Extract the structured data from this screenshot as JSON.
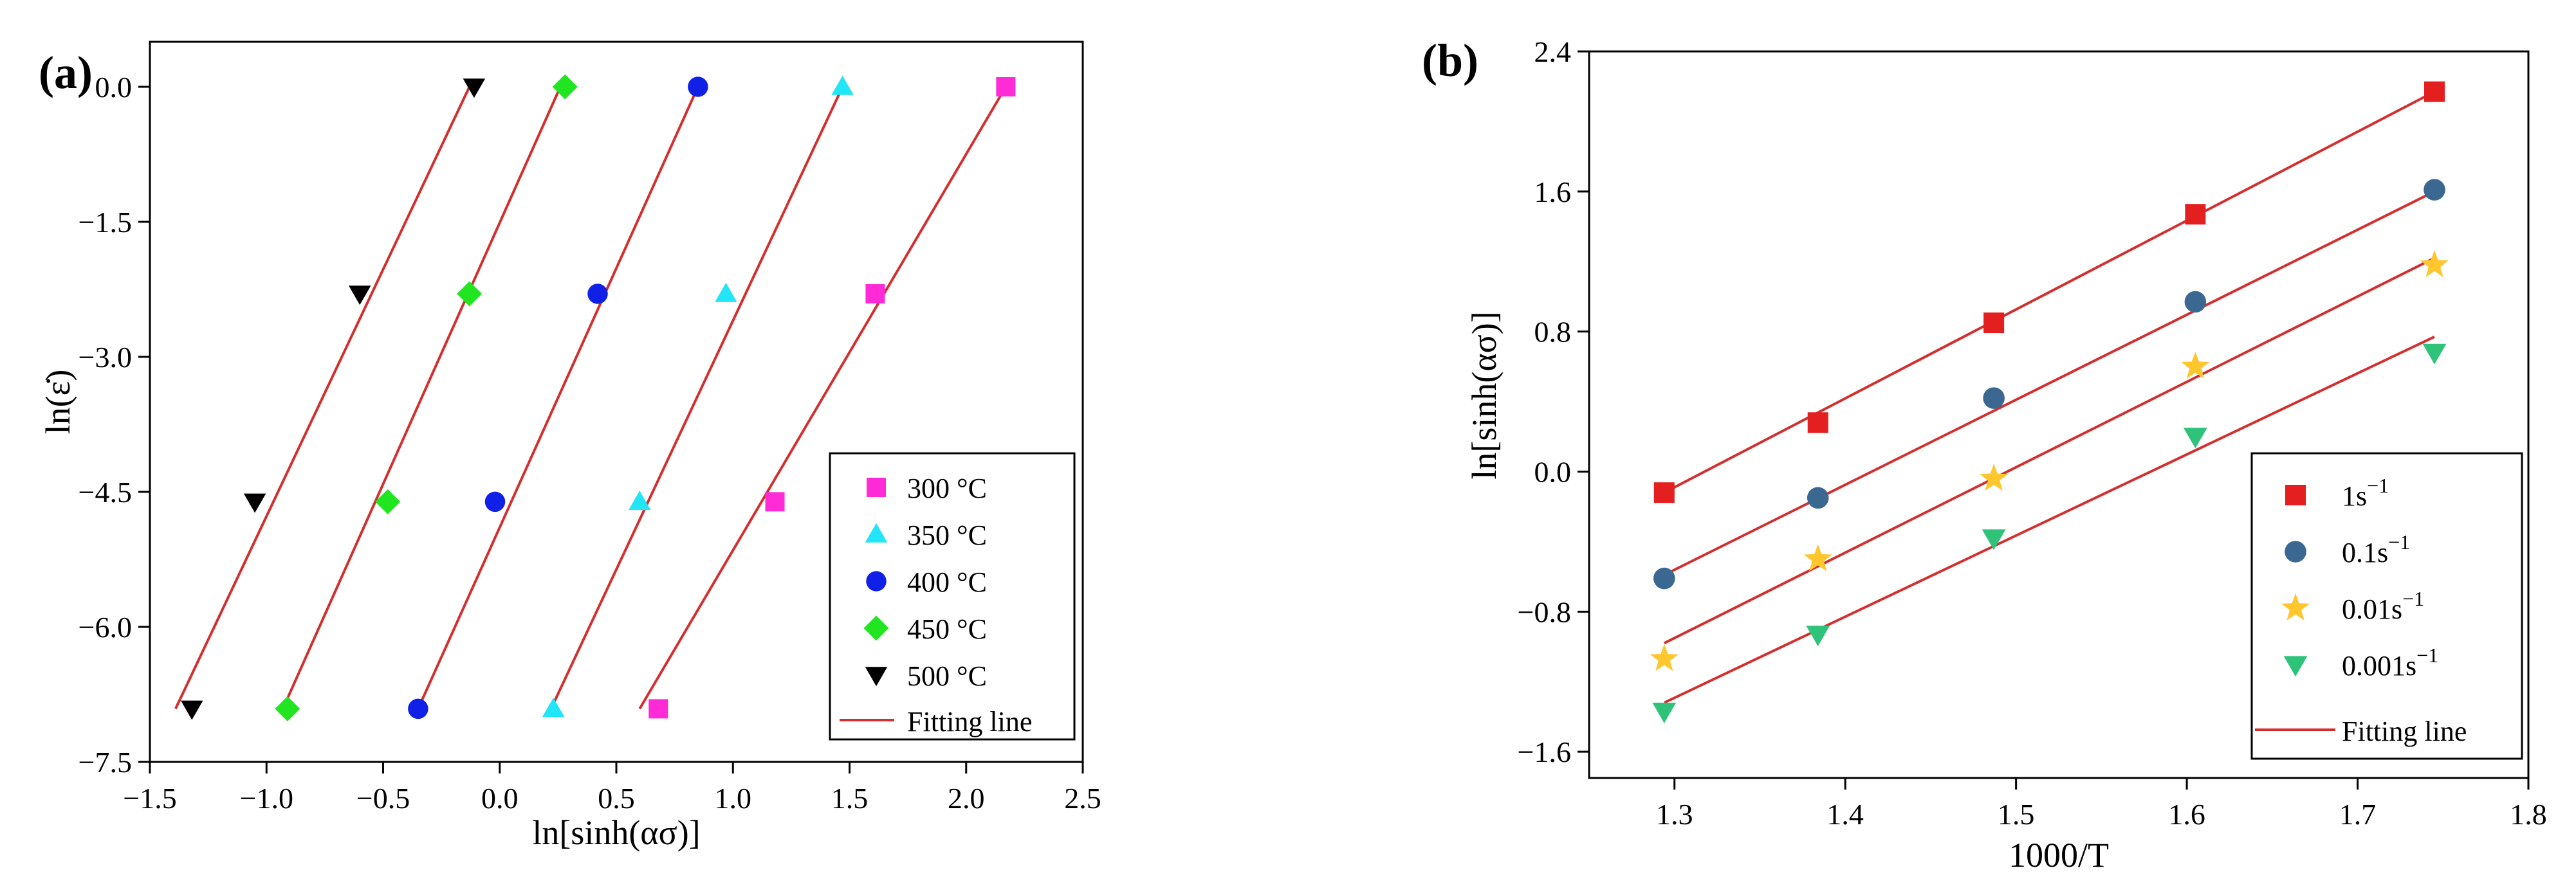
{
  "colors": {
    "fit": "#d32f2f",
    "magenta": "#ff2bd6",
    "cyan": "#22e5f7",
    "blue": "#1020e6",
    "green": "#22e522",
    "black": "#000000",
    "red": "#e31f1f",
    "steel": "#3a6891",
    "gold": "#ffc62e",
    "teal": "#2fc37a"
  },
  "chart_data": [
    {
      "panel_label": "(a)",
      "type": "scatter",
      "xlabel": "ln[sinh(ασ)]",
      "ylabel": "ln(ε̇)",
      "xlim": [
        -1.5,
        2.5
      ],
      "ylim": [
        -7.5,
        0.5
      ],
      "xticks": [
        -1.5,
        -1.0,
        -0.5,
        0.0,
        0.5,
        1.0,
        1.5,
        2.0,
        2.5
      ],
      "xtick_labels": [
        "−1.5",
        "−1.0",
        "−0.5",
        "0.0",
        "0.5",
        "1.0",
        "1.5",
        "2.0",
        "2.5"
      ],
      "yticks": [
        0.0,
        -1.5,
        -3.0,
        -4.5,
        -6.0,
        -7.5
      ],
      "ytick_labels": [
        "0.0",
        "−1.5",
        "−3.0",
        "−4.5",
        "−6.0",
        "−7.5"
      ],
      "legend_position": "bottom-right",
      "fit_label": "Fitting line",
      "series": [
        {
          "name": "300 °C",
          "marker": "square",
          "color": "#ff2bd6",
          "x": [
            0.68,
            1.18,
            1.61,
            2.17
          ],
          "y": [
            -6.91,
            -4.61,
            -2.3,
            0.0
          ],
          "fit": {
            "x": [
              0.6,
              2.17
            ],
            "y": [
              -6.91,
              0.0
            ]
          }
        },
        {
          "name": "350 °C",
          "marker": "triangle-up",
          "color": "#22e5f7",
          "x": [
            0.23,
            0.6,
            0.97,
            1.47
          ],
          "y": [
            -6.91,
            -4.61,
            -2.3,
            0.0
          ],
          "fit": {
            "x": [
              0.22,
              1.47
            ],
            "y": [
              -6.91,
              0.0
            ]
          }
        },
        {
          "name": "400 °C",
          "marker": "circle",
          "color": "#1020e6",
          "x": [
            -0.35,
            -0.02,
            0.42,
            0.85
          ],
          "y": [
            -6.91,
            -4.61,
            -2.3,
            0.0
          ],
          "fit": {
            "x": [
              -0.35,
              0.85
            ],
            "y": [
              -6.91,
              0.0
            ]
          }
        },
        {
          "name": "450 °C",
          "marker": "diamond",
          "color": "#22e522",
          "x": [
            -0.91,
            -0.48,
            -0.13,
            0.28
          ],
          "y": [
            -6.91,
            -4.61,
            -2.3,
            0.0
          ],
          "fit": {
            "x": [
              -0.93,
              0.26
            ],
            "y": [
              -6.91,
              0.0
            ]
          }
        },
        {
          "name": "500 °C",
          "marker": "triangle-down",
          "color": "#000000",
          "x": [
            -1.32,
            -1.05,
            -0.6,
            -0.11
          ],
          "y": [
            -6.91,
            -4.61,
            -2.3,
            0.0
          ],
          "fit": {
            "x": [
              -1.39,
              -0.13
            ],
            "y": [
              -6.91,
              0.0
            ]
          }
        }
      ]
    },
    {
      "panel_label": "(b)",
      "type": "scatter",
      "xlabel": "1000/T",
      "ylabel": "ln[sinh(ασ)]",
      "xlim": [
        1.25,
        1.8
      ],
      "ylim": [
        -1.75,
        2.4
      ],
      "xticks": [
        1.3,
        1.4,
        1.5,
        1.6,
        1.7,
        1.8
      ],
      "xtick_labels": [
        "1.3",
        "1.4",
        "1.5",
        "1.6",
        "1.7",
        "1.8"
      ],
      "yticks": [
        2.4,
        1.6,
        0.8,
        0.0,
        -0.8,
        -1.6
      ],
      "ytick_labels": [
        "2.4",
        "1.6",
        "0.8",
        "0.0",
        "−0.8",
        "−1.6"
      ],
      "legend_position": "bottom-right",
      "fit_label": "Fitting line",
      "series": [
        {
          "name_base": "1s",
          "name_exp": "−1",
          "marker": "square",
          "color": "#e31f1f",
          "x": [
            1.294,
            1.384,
            1.487,
            1.605,
            1.745
          ],
          "y": [
            -0.12,
            0.28,
            0.85,
            1.47,
            2.17
          ],
          "fit": {
            "x": [
              1.294,
              1.745
            ],
            "y": [
              -0.12,
              2.17
            ]
          }
        },
        {
          "name_base": "0.1s",
          "name_exp": "−1",
          "marker": "circle",
          "color": "#3a6891",
          "x": [
            1.294,
            1.384,
            1.487,
            1.605,
            1.745
          ],
          "y": [
            -0.61,
            -0.15,
            0.42,
            0.97,
            1.61
          ],
          "fit": {
            "x": [
              1.294,
              1.745
            ],
            "y": [
              -0.59,
              1.6
            ]
          }
        },
        {
          "name_base": "0.01s",
          "name_exp": "−1",
          "marker": "star",
          "color": "#ffc62e",
          "x": [
            1.294,
            1.384,
            1.487,
            1.605,
            1.745
          ],
          "y": [
            -1.07,
            -0.5,
            -0.04,
            0.6,
            1.18
          ],
          "fit": {
            "x": [
              1.294,
              1.745
            ],
            "y": [
              -0.98,
              1.22
            ]
          }
        },
        {
          "name_base": "0.001s",
          "name_exp": "−1",
          "marker": "triangle-down",
          "color": "#2fc37a",
          "x": [
            1.294,
            1.384,
            1.487,
            1.605,
            1.745
          ],
          "y": [
            -1.37,
            -0.93,
            -0.38,
            0.2,
            0.68
          ],
          "fit": {
            "x": [
              1.294,
              1.745
            ],
            "y": [
              -1.32,
              0.77
            ]
          }
        }
      ]
    }
  ]
}
